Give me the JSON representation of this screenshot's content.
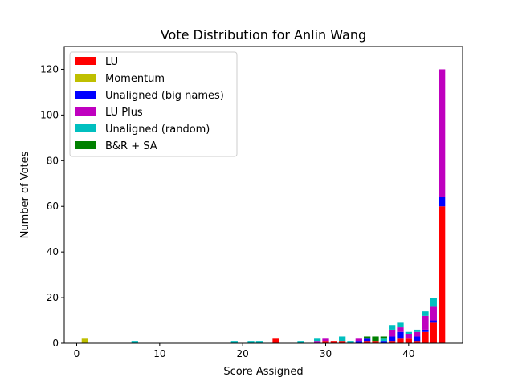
{
  "chart_data": {
    "type": "bar",
    "stacked": true,
    "title": "Vote Distribution for Anlin Wang",
    "xlabel": "Score Assigned",
    "ylabel": "Number of Votes",
    "xlim": [
      -1.5,
      46.5
    ],
    "ylim": [
      0,
      130
    ],
    "xticks": [
      0,
      10,
      20,
      30,
      40
    ],
    "yticks": [
      0,
      20,
      40,
      60,
      80,
      100,
      120
    ],
    "grid": false,
    "legend_position": "top-left",
    "series": [
      {
        "name": "LU",
        "color": "#ff0000",
        "points": [
          [
            24,
            2
          ],
          [
            30,
            1
          ],
          [
            31,
            1
          ],
          [
            32,
            1
          ],
          [
            35,
            1
          ],
          [
            36,
            1
          ],
          [
            38,
            1
          ],
          [
            39,
            2
          ],
          [
            40,
            2
          ],
          [
            41,
            1
          ],
          [
            42,
            5
          ],
          [
            43,
            9
          ],
          [
            44,
            60
          ]
        ]
      },
      {
        "name": "Momentum",
        "color": "#bfbf00",
        "points": [
          [
            1,
            2
          ]
        ]
      },
      {
        "name": "Unaligned (big names)",
        "color": "#0000ff",
        "points": [
          [
            34,
            1
          ],
          [
            35,
            1
          ],
          [
            37,
            1
          ],
          [
            38,
            2
          ],
          [
            39,
            3
          ],
          [
            41,
            2
          ],
          [
            42,
            1
          ],
          [
            43,
            1
          ],
          [
            44,
            4
          ]
        ]
      },
      {
        "name": "LU Plus",
        "color": "#bf00bf",
        "points": [
          [
            29,
            1
          ],
          [
            30,
            1
          ],
          [
            34,
            1
          ],
          [
            38,
            3
          ],
          [
            39,
            2
          ],
          [
            40,
            2
          ],
          [
            41,
            2
          ],
          [
            42,
            6
          ],
          [
            43,
            6
          ],
          [
            44,
            56
          ]
        ]
      },
      {
        "name": "Unaligned (random)",
        "color": "#00bfbf",
        "points": [
          [
            7,
            1
          ],
          [
            19,
            1
          ],
          [
            21,
            1
          ],
          [
            22,
            1
          ],
          [
            27,
            1
          ],
          [
            29,
            1
          ],
          [
            32,
            2
          ],
          [
            33,
            1
          ],
          [
            37,
            1
          ],
          [
            38,
            2
          ],
          [
            39,
            2
          ],
          [
            40,
            1
          ],
          [
            41,
            1
          ],
          [
            42,
            2
          ],
          [
            43,
            4
          ]
        ]
      },
      {
        "name": "B&R + SA",
        "color": "#008000",
        "points": [
          [
            35,
            1
          ],
          [
            36,
            2
          ],
          [
            37,
            1
          ]
        ]
      }
    ]
  }
}
